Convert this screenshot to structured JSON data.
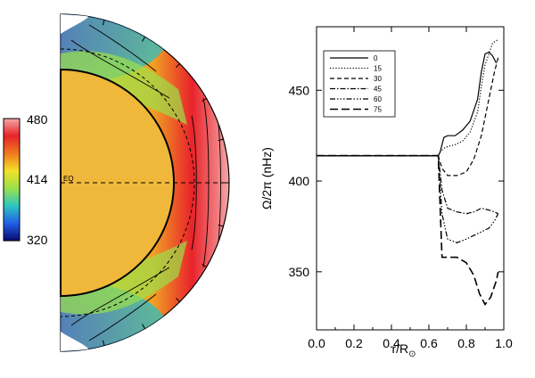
{
  "colorbar": {
    "max_label": "480",
    "mid_label": "414",
    "min_label": "320",
    "colors": [
      "#f4a6a6",
      "#e8232a",
      "#f07a1e",
      "#f2e02a",
      "#9be04a",
      "#2ec6c0",
      "#2060e8",
      "#0a0a70"
    ]
  },
  "meridional": {
    "equator_label": "EQ",
    "core_color": "#f0b83a",
    "contour_color": "#000000"
  },
  "chart_data": {
    "type": "line",
    "title": "",
    "xlabel": "r/R",
    "xlabel_sub": "⊙",
    "ylabel": "Ω/2π (nHz)",
    "xlim": [
      0.0,
      1.0
    ],
    "ylim": [
      318,
      485
    ],
    "xticks": [
      "0.0",
      "0.2",
      "0.4",
      "0.6",
      "0.8",
      "1.0"
    ],
    "yticks": [
      "350",
      "400",
      "450"
    ],
    "xtick_values": [
      0.0,
      0.2,
      0.4,
      0.6,
      0.8,
      1.0
    ],
    "ytick_values": [
      350,
      400,
      450
    ],
    "legend_position": "top-left",
    "series": [
      {
        "name": "0",
        "dash": "",
        "width": 1.2,
        "x": [
          0.0,
          0.65,
          0.66,
          0.68,
          0.7,
          0.74,
          0.78,
          0.82,
          0.86,
          0.88,
          0.9,
          0.92,
          0.94,
          0.96
        ],
        "y": [
          414,
          414,
          416,
          424,
          425,
          425,
          428,
          433,
          445,
          460,
          470,
          471,
          469,
          465
        ]
      },
      {
        "name": "15",
        "dash": "1.2,2",
        "width": 1.2,
        "x": [
          0.0,
          0.65,
          0.66,
          0.68,
          0.7,
          0.74,
          0.78,
          0.82,
          0.86,
          0.88,
          0.9,
          0.92,
          0.94,
          0.97
        ],
        "y": [
          414,
          414,
          416,
          418,
          419,
          420,
          422,
          427,
          438,
          452,
          464,
          470,
          476,
          478
        ]
      },
      {
        "name": "30",
        "dash": "5,3",
        "width": 1.2,
        "x": [
          0.0,
          0.65,
          0.67,
          0.7,
          0.75,
          0.8,
          0.84,
          0.88,
          0.92,
          0.95,
          0.97
        ],
        "y": [
          414,
          414,
          407,
          403,
          403,
          405,
          412,
          425,
          445,
          460,
          468
        ]
      },
      {
        "name": "45",
        "dash": "6,2,1.5,2",
        "width": 1.2,
        "x": [
          0.0,
          0.65,
          0.67,
          0.7,
          0.75,
          0.8,
          0.84,
          0.88,
          0.92,
          0.95,
          0.97
        ],
        "y": [
          414,
          414,
          395,
          385,
          383,
          382,
          383,
          385,
          384,
          383,
          382
        ]
      },
      {
        "name": "60",
        "dash": "6,2,1.5,2,1.5,2,1.5,2",
        "width": 1.2,
        "x": [
          0.0,
          0.65,
          0.67,
          0.7,
          0.75,
          0.8,
          0.84,
          0.88,
          0.92,
          0.95,
          0.97
        ],
        "y": [
          414,
          414,
          382,
          368,
          366,
          368,
          370,
          372,
          374,
          378,
          382
        ]
      },
      {
        "name": "75",
        "dash": "9,4",
        "width": 1.6,
        "x": [
          0.0,
          0.65,
          0.67,
          0.7,
          0.75,
          0.8,
          0.84,
          0.87,
          0.9,
          0.93,
          0.96,
          0.97
        ],
        "y": [
          414,
          414,
          358,
          358,
          358,
          355,
          348,
          338,
          332,
          336,
          345,
          350
        ]
      }
    ]
  }
}
